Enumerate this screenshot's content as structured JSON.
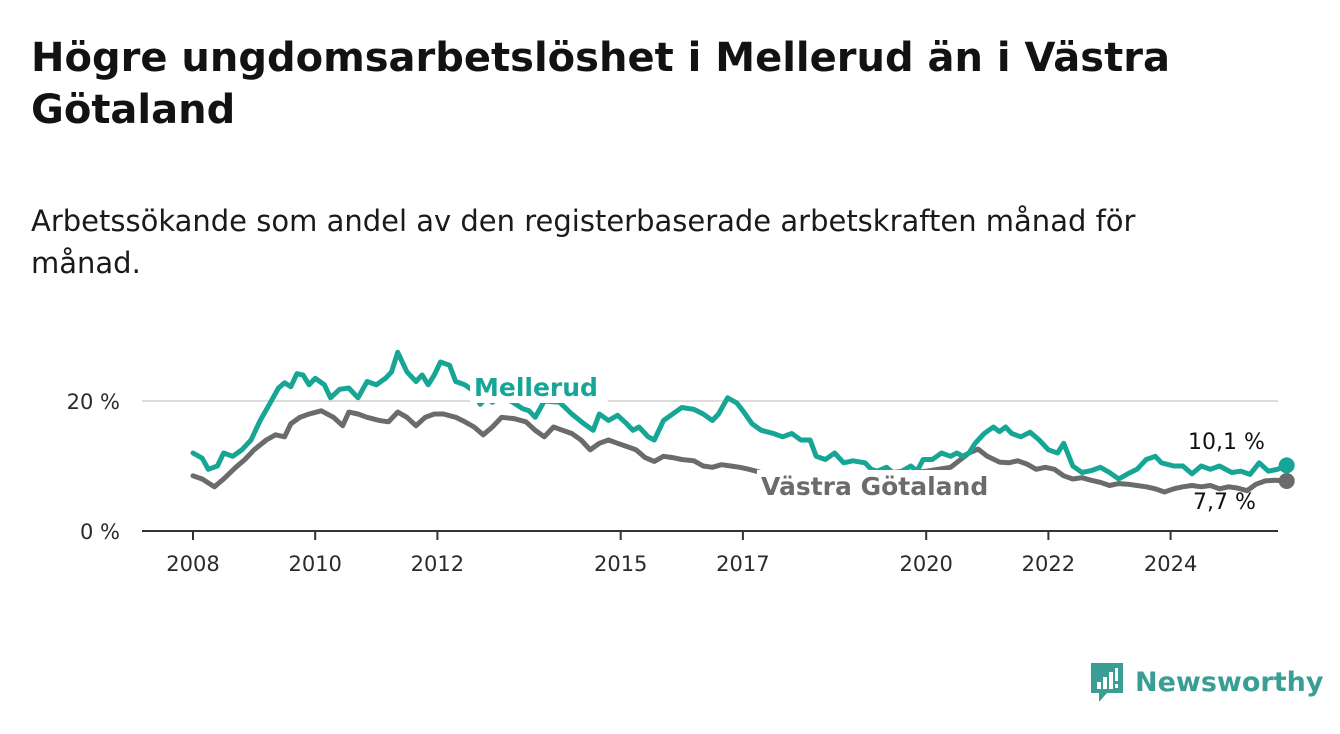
{
  "title": "Högre ungdomsarbetslöshet i Mellerud än i Västra Götaland",
  "subtitle": "Arbetssökande som andel av den registerbaserade arbetskraften månad för månad.",
  "brand": "Newsworthy",
  "colors": {
    "mellerud": "#17a596",
    "vastra": "#6b6b6e",
    "grid": "#dcdcdc",
    "axis": "#333333",
    "brand": "#3a9e95"
  },
  "chart_data": {
    "type": "line",
    "title": "Högre ungdomsarbetslöshet i Mellerud än i Västra Götaland",
    "subtitle": "Arbetssökande som andel av den registerbaserade arbetskraften månad för månad.",
    "xlabel": "",
    "ylabel": "",
    "xlim": [
      2008,
      2025.7
    ],
    "ylim": [
      0,
      28
    ],
    "grid": true,
    "x_ticks": [
      {
        "value": 2008,
        "label": "2008"
      },
      {
        "value": 2010,
        "label": "2010"
      },
      {
        "value": 2012,
        "label": "2012"
      },
      {
        "value": 2015,
        "label": "2015"
      },
      {
        "value": 2017,
        "label": "2017"
      },
      {
        "value": 2020,
        "label": "2020"
      },
      {
        "value": 2022,
        "label": "2022"
      },
      {
        "value": 2024,
        "label": "2024"
      }
    ],
    "y_ticks": [
      {
        "value": 0,
        "label": "0 %"
      },
      {
        "value": 20,
        "label": "20 %"
      }
    ],
    "series": [
      {
        "name": "Mellerud",
        "end_label": "10,1 %",
        "points": [
          [
            2008.0,
            12
          ],
          [
            2008.15,
            11.2
          ],
          [
            2008.25,
            9.5
          ],
          [
            2008.4,
            10
          ],
          [
            2008.5,
            12
          ],
          [
            2008.65,
            11.5
          ],
          [
            2008.8,
            12.5
          ],
          [
            2008.95,
            14
          ],
          [
            2009.1,
            17
          ],
          [
            2009.25,
            19.5
          ],
          [
            2009.4,
            22
          ],
          [
            2009.5,
            22.8
          ],
          [
            2009.6,
            22.2
          ],
          [
            2009.7,
            24.2
          ],
          [
            2009.8,
            24
          ],
          [
            2009.9,
            22.5
          ],
          [
            2010.0,
            23.5
          ],
          [
            2010.15,
            22.5
          ],
          [
            2010.25,
            20.5
          ],
          [
            2010.4,
            21.8
          ],
          [
            2010.55,
            22
          ],
          [
            2010.7,
            20.5
          ],
          [
            2010.85,
            23
          ],
          [
            2011.0,
            22.5
          ],
          [
            2011.15,
            23.5
          ],
          [
            2011.25,
            24.5
          ],
          [
            2011.35,
            27.5
          ],
          [
            2011.5,
            24.5
          ],
          [
            2011.65,
            23
          ],
          [
            2011.75,
            24
          ],
          [
            2011.85,
            22.5
          ],
          [
            2011.95,
            24
          ],
          [
            2012.05,
            26
          ],
          [
            2012.2,
            25.5
          ],
          [
            2012.3,
            23
          ],
          [
            2012.45,
            22.5
          ],
          [
            2012.6,
            21.5
          ],
          [
            2012.7,
            19.5
          ],
          [
            2012.8,
            20.5
          ],
          [
            2012.9,
            19.8
          ],
          [
            2013.0,
            20.5
          ],
          [
            2013.2,
            20
          ],
          [
            2013.4,
            18.8
          ],
          [
            2013.5,
            18.5
          ],
          [
            2013.6,
            17.5
          ],
          [
            2013.75,
            20
          ],
          [
            2014.0,
            19.8
          ],
          [
            2014.2,
            18
          ],
          [
            2014.4,
            16.5
          ],
          [
            2014.55,
            15.5
          ],
          [
            2014.65,
            18
          ],
          [
            2014.8,
            17
          ],
          [
            2014.95,
            17.8
          ],
          [
            2015.1,
            16.5
          ],
          [
            2015.2,
            15.5
          ],
          [
            2015.3,
            16
          ],
          [
            2015.45,
            14.5
          ],
          [
            2015.55,
            14
          ],
          [
            2015.7,
            17
          ],
          [
            2015.85,
            18
          ],
          [
            2016.0,
            19
          ],
          [
            2016.2,
            18.7
          ],
          [
            2016.35,
            18
          ],
          [
            2016.5,
            17
          ],
          [
            2016.6,
            18
          ],
          [
            2016.75,
            20.5
          ],
          [
            2016.9,
            19.7
          ],
          [
            2017.0,
            18.5
          ],
          [
            2017.15,
            16.5
          ],
          [
            2017.3,
            15.5
          ],
          [
            2017.5,
            15
          ],
          [
            2017.65,
            14.5
          ],
          [
            2017.8,
            15
          ],
          [
            2017.95,
            14
          ],
          [
            2018.1,
            14
          ],
          [
            2018.2,
            11.5
          ],
          [
            2018.35,
            11
          ],
          [
            2018.5,
            12
          ],
          [
            2018.65,
            10.5
          ],
          [
            2018.8,
            10.8
          ],
          [
            2019.0,
            10.5
          ],
          [
            2019.1,
            9.5
          ],
          [
            2019.2,
            9.2
          ],
          [
            2019.35,
            9.8
          ],
          [
            2019.45,
            9
          ],
          [
            2019.6,
            9.2
          ],
          [
            2019.75,
            10
          ],
          [
            2019.85,
            9.2
          ],
          [
            2019.95,
            11
          ],
          [
            2020.1,
            11
          ],
          [
            2020.25,
            12
          ],
          [
            2020.4,
            11.5
          ],
          [
            2020.5,
            12
          ],
          [
            2020.6,
            11.5
          ],
          [
            2020.7,
            12
          ],
          [
            2020.8,
            13.5
          ],
          [
            2020.95,
            15
          ],
          [
            2021.1,
            16
          ],
          [
            2021.2,
            15.3
          ],
          [
            2021.3,
            16
          ],
          [
            2021.4,
            15
          ],
          [
            2021.55,
            14.5
          ],
          [
            2021.7,
            15.2
          ],
          [
            2021.85,
            14
          ],
          [
            2022.0,
            12.5
          ],
          [
            2022.15,
            12
          ],
          [
            2022.25,
            13.5
          ],
          [
            2022.4,
            10
          ],
          [
            2022.55,
            9
          ],
          [
            2022.7,
            9.3
          ],
          [
            2022.85,
            9.8
          ],
          [
            2023.0,
            9
          ],
          [
            2023.15,
            8
          ],
          [
            2023.3,
            8.8
          ],
          [
            2023.45,
            9.5
          ],
          [
            2023.6,
            11
          ],
          [
            2023.75,
            11.5
          ],
          [
            2023.85,
            10.5
          ],
          [
            2024.05,
            10
          ],
          [
            2024.2,
            10
          ],
          [
            2024.35,
            8.8
          ],
          [
            2024.5,
            10
          ],
          [
            2024.65,
            9.5
          ],
          [
            2024.8,
            10
          ],
          [
            2025.0,
            9
          ],
          [
            2025.15,
            9.2
          ],
          [
            2025.3,
            8.7
          ],
          [
            2025.45,
            10.5
          ],
          [
            2025.6,
            9.2
          ],
          [
            2025.75,
            9.5
          ],
          [
            2025.9,
            10.1
          ]
        ]
      },
      {
        "name": "Västra Götaland",
        "end_label": "7,7 %",
        "points": [
          [
            2008.0,
            8.5
          ],
          [
            2008.15,
            8
          ],
          [
            2008.35,
            6.8
          ],
          [
            2008.5,
            8
          ],
          [
            2008.7,
            9.8
          ],
          [
            2008.85,
            11
          ],
          [
            2009.0,
            12.5
          ],
          [
            2009.2,
            14
          ],
          [
            2009.35,
            14.8
          ],
          [
            2009.5,
            14.5
          ],
          [
            2009.6,
            16.5
          ],
          [
            2009.75,
            17.5
          ],
          [
            2009.9,
            18
          ],
          [
            2010.1,
            18.5
          ],
          [
            2010.3,
            17.5
          ],
          [
            2010.45,
            16.2
          ],
          [
            2010.55,
            18.3
          ],
          [
            2010.7,
            18
          ],
          [
            2010.85,
            17.5
          ],
          [
            2011.05,
            17
          ],
          [
            2011.2,
            16.8
          ],
          [
            2011.35,
            18.3
          ],
          [
            2011.5,
            17.5
          ],
          [
            2011.65,
            16.2
          ],
          [
            2011.8,
            17.5
          ],
          [
            2011.95,
            18
          ],
          [
            2012.1,
            18
          ],
          [
            2012.3,
            17.5
          ],
          [
            2012.45,
            16.8
          ],
          [
            2012.6,
            16
          ],
          [
            2012.75,
            14.8
          ],
          [
            2012.9,
            16
          ],
          [
            2013.05,
            17.5
          ],
          [
            2013.25,
            17.3
          ],
          [
            2013.45,
            16.8
          ],
          [
            2013.6,
            15.5
          ],
          [
            2013.75,
            14.5
          ],
          [
            2013.9,
            16
          ],
          [
            2014.05,
            15.5
          ],
          [
            2014.2,
            15
          ],
          [
            2014.35,
            14
          ],
          [
            2014.5,
            12.5
          ],
          [
            2014.65,
            13.5
          ],
          [
            2014.8,
            14
          ],
          [
            2014.95,
            13.5
          ],
          [
            2015.1,
            13
          ],
          [
            2015.25,
            12.5
          ],
          [
            2015.4,
            11.3
          ],
          [
            2015.55,
            10.7
          ],
          [
            2015.7,
            11.5
          ],
          [
            2015.85,
            11.3
          ],
          [
            2016.0,
            11
          ],
          [
            2016.2,
            10.8
          ],
          [
            2016.35,
            10
          ],
          [
            2016.5,
            9.8
          ],
          [
            2016.65,
            10.2
          ],
          [
            2016.8,
            10
          ],
          [
            2016.95,
            9.8
          ],
          [
            2017.1,
            9.5
          ]
        ],
        "points_tail": [
          [
            2021.35,
            10.5
          ],
          [
            2021.5,
            10.8
          ],
          [
            2021.65,
            10.3
          ],
          [
            2021.8,
            9.5
          ],
          [
            2021.95,
            9.8
          ],
          [
            2022.1,
            9.5
          ],
          [
            2022.25,
            8.5
          ],
          [
            2022.4,
            8
          ],
          [
            2022.55,
            8.2
          ],
          [
            2022.7,
            7.8
          ],
          [
            2022.85,
            7.5
          ],
          [
            2023.0,
            7
          ],
          [
            2023.15,
            7.3
          ],
          [
            2023.3,
            7.2
          ],
          [
            2023.45,
            7
          ],
          [
            2023.6,
            6.8
          ],
          [
            2023.75,
            6.5
          ],
          [
            2023.9,
            6
          ],
          [
            2024.05,
            6.5
          ],
          [
            2024.2,
            6.8
          ],
          [
            2024.35,
            7
          ],
          [
            2024.5,
            6.8
          ],
          [
            2024.65,
            7
          ],
          [
            2024.8,
            6.5
          ],
          [
            2024.95,
            6.8
          ],
          [
            2025.1,
            6.6
          ],
          [
            2025.25,
            6.2
          ],
          [
            2025.4,
            7.2
          ],
          [
            2025.55,
            7.7
          ],
          [
            2025.7,
            7.8
          ],
          [
            2025.9,
            7.7
          ]
        ]
      }
    ]
  }
}
